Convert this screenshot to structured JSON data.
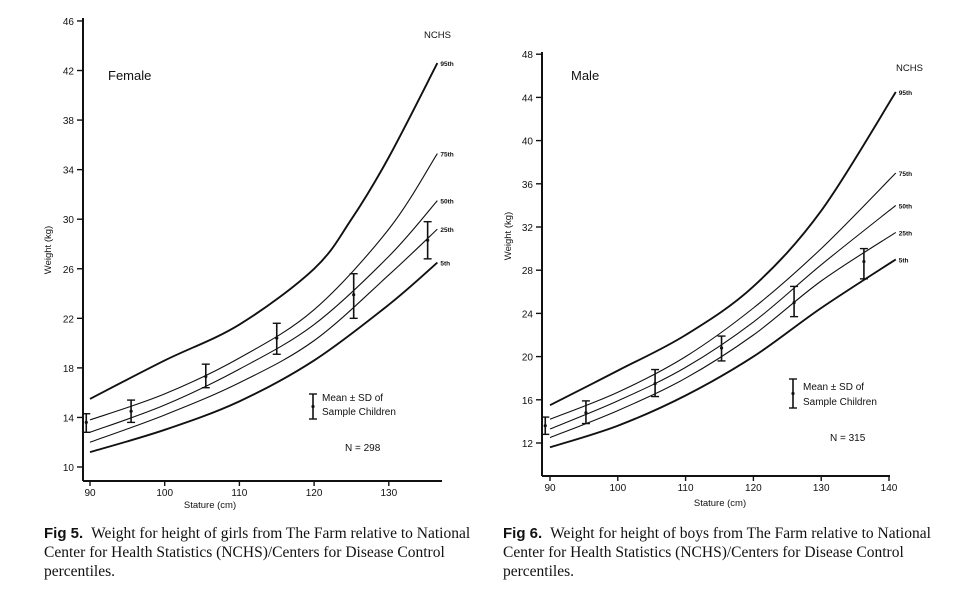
{
  "chart_data": [
    {
      "type": "line",
      "panel_label": "Female",
      "source_label": "NCHS",
      "xlabel": "Stature (cm)",
      "ylabel": "Weight (kg)",
      "xlim": [
        89,
        137
      ],
      "ylim": [
        9,
        46
      ],
      "xticks": [
        90,
        100,
        110,
        120,
        130
      ],
      "yticks": [
        10,
        14,
        18,
        22,
        26,
        30,
        34,
        38,
        42,
        46
      ],
      "grid": false,
      "series": [
        {
          "name": "95th",
          "x": [
            90,
            100,
            110,
            120,
            125,
            130,
            136.5
          ],
          "y": [
            15.5,
            18.6,
            21.5,
            26.0,
            30.0,
            35.0,
            42.6
          ]
        },
        {
          "name": "75th",
          "x": [
            90,
            100,
            110,
            120,
            130,
            136.5
          ],
          "y": [
            13.8,
            15.9,
            18.8,
            22.7,
            29.2,
            35.3
          ]
        },
        {
          "name": "50th",
          "x": [
            90,
            100,
            110,
            120,
            130,
            136.5
          ],
          "y": [
            12.8,
            15.0,
            17.9,
            21.5,
            27.0,
            31.5
          ]
        },
        {
          "name": "25th",
          "x": [
            90,
            100,
            110,
            120,
            130,
            136.5
          ],
          "y": [
            12.0,
            14.2,
            16.8,
            20.2,
            25.5,
            29.2
          ]
        },
        {
          "name": "5th",
          "x": [
            90,
            100,
            110,
            120,
            130,
            136.5
          ],
          "y": [
            11.2,
            13.0,
            15.3,
            18.6,
            23.1,
            26.5
          ]
        }
      ],
      "error_bars": [
        {
          "x": 89.5,
          "mean": 13.6,
          "low": 12.8,
          "high": 14.3
        },
        {
          "x": 95.5,
          "mean": 14.5,
          "low": 13.6,
          "high": 15.4
        },
        {
          "x": 105.5,
          "mean": 17.3,
          "low": 16.4,
          "high": 18.3
        },
        {
          "x": 115,
          "mean": 20.4,
          "low": 19.1,
          "high": 21.6
        },
        {
          "x": 125.3,
          "mean": 23.9,
          "low": 22.0,
          "high": 25.6
        },
        {
          "x": 135.2,
          "mean": 28.3,
          "low": 26.8,
          "high": 29.8
        }
      ],
      "legend": {
        "line1": "Mean ± SD of",
        "line2": "Sample Children",
        "placement": "bottom-right"
      },
      "n_label": "N = 298"
    },
    {
      "type": "line",
      "panel_label": "Male",
      "source_label": "NCHS",
      "xlabel": "Stature (cm)",
      "ylabel": "Weight (kg)",
      "xlim": [
        89,
        141
      ],
      "ylim": [
        9,
        48
      ],
      "xticks": [
        90,
        100,
        110,
        120,
        130,
        140
      ],
      "yticks": [
        12,
        16,
        20,
        24,
        28,
        32,
        36,
        40,
        44,
        48
      ],
      "grid": false,
      "series": [
        {
          "name": "95th",
          "x": [
            90,
            100,
            110,
            120,
            130,
            141
          ],
          "y": [
            15.5,
            18.7,
            22.0,
            26.5,
            33.5,
            44.5
          ]
        },
        {
          "name": "75th",
          "x": [
            90,
            100,
            110,
            120,
            130,
            141
          ],
          "y": [
            14.2,
            16.7,
            20.0,
            24.5,
            30.0,
            37.0
          ]
        },
        {
          "name": "50th",
          "x": [
            90,
            100,
            110,
            120,
            130,
            141
          ],
          "y": [
            13.3,
            15.9,
            19.0,
            23.2,
            28.5,
            34.0
          ]
        },
        {
          "name": "25th",
          "x": [
            90,
            100,
            110,
            120,
            130,
            141
          ],
          "y": [
            12.5,
            15.0,
            18.0,
            22.0,
            27.0,
            31.5
          ]
        },
        {
          "name": "5th",
          "x": [
            90,
            100,
            110,
            120,
            130,
            141
          ],
          "y": [
            11.6,
            13.6,
            16.4,
            20.0,
            24.5,
            29.0
          ]
        }
      ],
      "error_bars": [
        {
          "x": 89.3,
          "mean": 13.6,
          "low": 12.8,
          "high": 14.4
        },
        {
          "x": 95.3,
          "mean": 14.8,
          "low": 13.8,
          "high": 15.9
        },
        {
          "x": 105.5,
          "mean": 17.5,
          "low": 16.3,
          "high": 18.8
        },
        {
          "x": 115.3,
          "mean": 20.8,
          "low": 19.6,
          "high": 21.9
        },
        {
          "x": 126,
          "mean": 25.0,
          "low": 23.7,
          "high": 26.5
        },
        {
          "x": 136.3,
          "mean": 28.8,
          "low": 27.2,
          "high": 30.0
        }
      ],
      "legend": {
        "line1": "Mean ± SD of",
        "line2": "Sample Children",
        "placement": "bottom-right"
      },
      "n_label": "N = 315"
    }
  ],
  "captions": [
    {
      "fig": "Fig 5.",
      "text": "Weight for height of girls from The Farm relative to National Center for Health Statistics (NCHS)/Centers for Disease Control percentiles."
    },
    {
      "fig": "Fig 6.",
      "text": "Weight for height of boys from The Farm relative to National Center for Health Statistics (NCHS)/Centers for Disease Control percentiles."
    }
  ]
}
